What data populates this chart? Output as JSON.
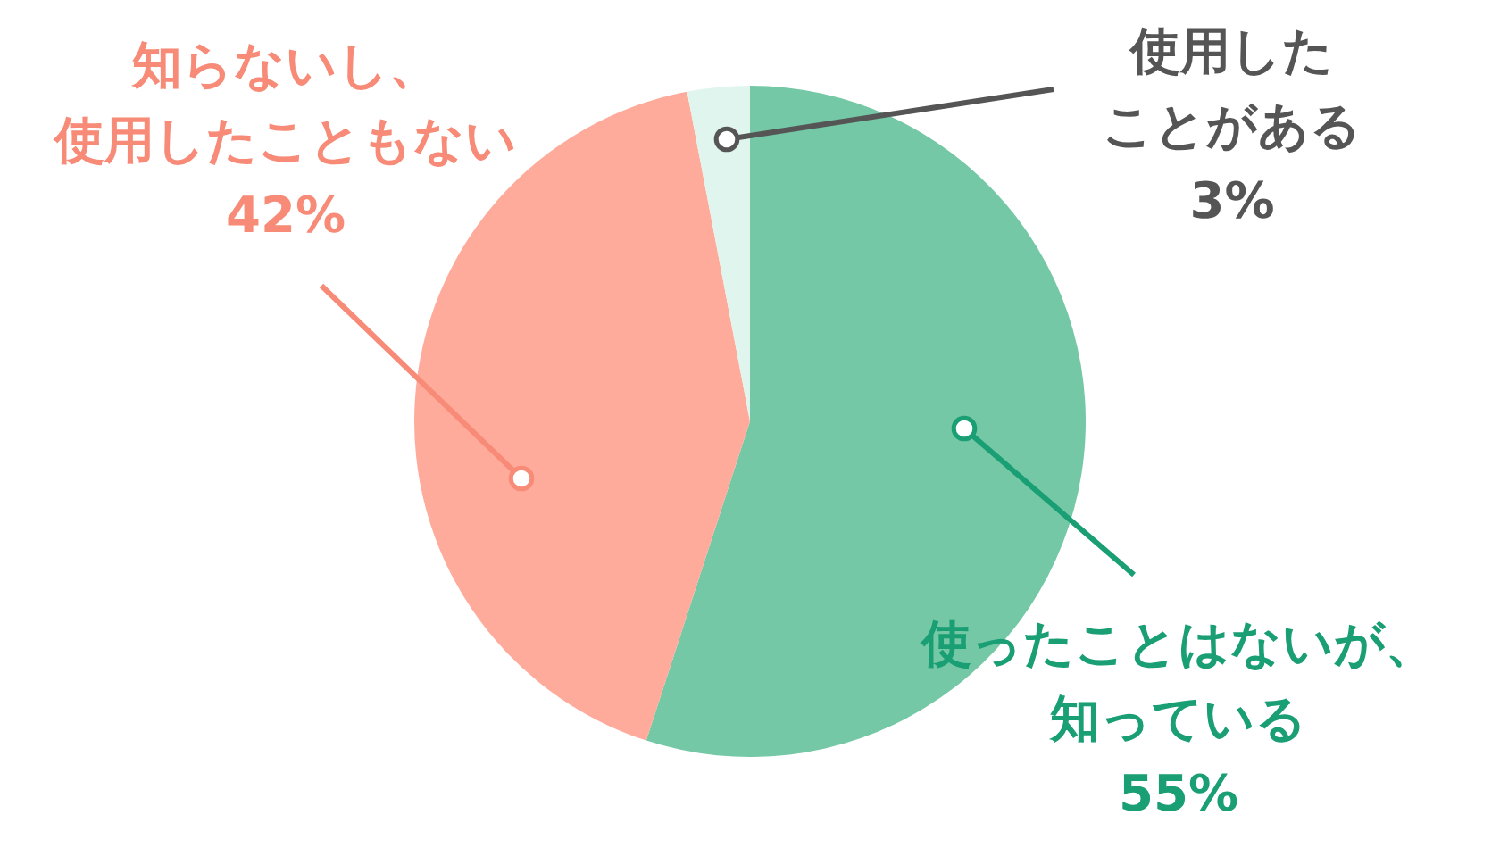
{
  "chart_data": {
    "type": "pie",
    "categories": [
      "使ったことはないが、知っている",
      "知らないし、使用したこともない",
      "使用したことがある"
    ],
    "values": [
      55,
      42,
      3
    ],
    "colors": [
      "#74c8a6",
      "#ffab9c",
      "#e0f5ee"
    ],
    "value_labels": [
      "55%",
      "42%",
      "3%"
    ]
  }
}
